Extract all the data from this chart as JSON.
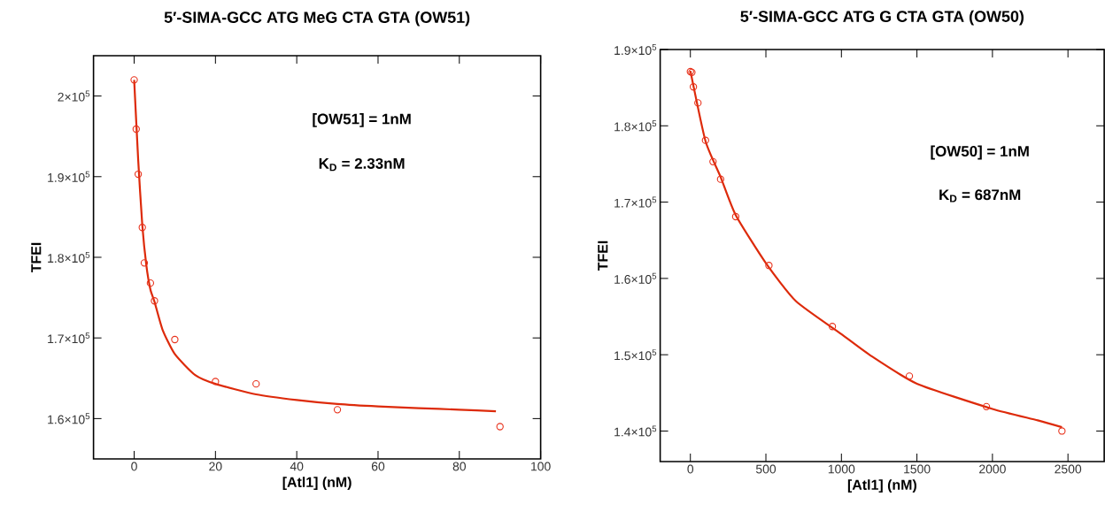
{
  "chart_data": [
    {
      "type": "scatter",
      "title": "5′-SIMA-GCC ATG MeG CTA GTA (OW51)",
      "xlabel": "[Atl1] (nM)",
      "ylabel": "TFEI",
      "annotations": [
        "[OW51] = 1nM",
        "K$_{D}$ = 2.33nM"
      ],
      "xlim": [
        -10,
        100
      ],
      "xticks": [
        0,
        20,
        40,
        60,
        80,
        100
      ],
      "ylim": [
        155000,
        205000
      ],
      "yticks": [
        {
          "value": 160000,
          "label": "1.6×10$^{5}$"
        },
        {
          "value": 170000,
          "label": "1.7×10$^{5}$"
        },
        {
          "value": 180000,
          "label": "1.8×10$^{5}$"
        },
        {
          "value": 190000,
          "label": "1.9×10$^{5}$"
        },
        {
          "value": 200000,
          "label": "2×10$^{5}$"
        }
      ],
      "series": [
        {
          "type": "scatter",
          "marker": "circle",
          "color": "#e8321c",
          "x": [
            0,
            0.5,
            1,
            2,
            2.5,
            4,
            5,
            10,
            20,
            30,
            50,
            90
          ],
          "values": [
            202000,
            195900,
            190300,
            183700,
            179300,
            176800,
            174600,
            169800,
            164600,
            164300,
            161100,
            159000
          ]
        },
        {
          "type": "line",
          "color": "#dd2a0a",
          "x": [
            0,
            1,
            2,
            3,
            4,
            5,
            7,
            10,
            15,
            20,
            30,
            40,
            50,
            60,
            70,
            80,
            89
          ],
          "values": [
            202000,
            192000,
            184000,
            179000,
            176000,
            174500,
            171000,
            168000,
            165400,
            164300,
            163000,
            162300,
            161800,
            161500,
            161300,
            161100,
            160900
          ]
        }
      ]
    },
    {
      "type": "scatter",
      "title": "5′-SIMA-GCC ATG G CTA GTA (OW50)",
      "xlabel": "[Atl1] (nM)",
      "ylabel": "TFEI",
      "annotations": [
        "[OW50] = 1nM",
        "K$_{D}$ = 687nM"
      ],
      "xlim": [
        -200,
        2740
      ],
      "xticks": [
        0,
        500,
        1000,
        1500,
        2000,
        2500
      ],
      "ylim": [
        136000,
        190000
      ],
      "yticks": [
        {
          "value": 140000,
          "label": "1.4×10$^{5}$"
        },
        {
          "value": 150000,
          "label": "1.5×10$^{5}$"
        },
        {
          "value": 160000,
          "label": "1.6×10$^{5}$"
        },
        {
          "value": 170000,
          "label": "1.7×10$^{5}$"
        },
        {
          "value": 180000,
          "label": "1.8×10$^{5}$"
        },
        {
          "value": 190000,
          "label": "1.9×10$^{5}$"
        }
      ],
      "series": [
        {
          "type": "scatter",
          "marker": "circle",
          "color": "#e8321c",
          "x": [
            0,
            10,
            20,
            50,
            100,
            150,
            200,
            300,
            520,
            940,
            1450,
            1960,
            2460
          ],
          "values": [
            187100,
            187000,
            185100,
            183000,
            178100,
            175300,
            173000,
            168100,
            161700,
            153700,
            147200,
            143200,
            140000
          ]
        },
        {
          "type": "line",
          "color": "#dd2a0a",
          "x": [
            0,
            100,
            200,
            300,
            500,
            700,
            1000,
            1200,
            1500,
            2000,
            2300,
            2460
          ],
          "values": [
            187200,
            178000,
            173300,
            168300,
            162000,
            157000,
            152700,
            149800,
            146200,
            142900,
            141400,
            140500
          ]
        }
      ]
    }
  ]
}
